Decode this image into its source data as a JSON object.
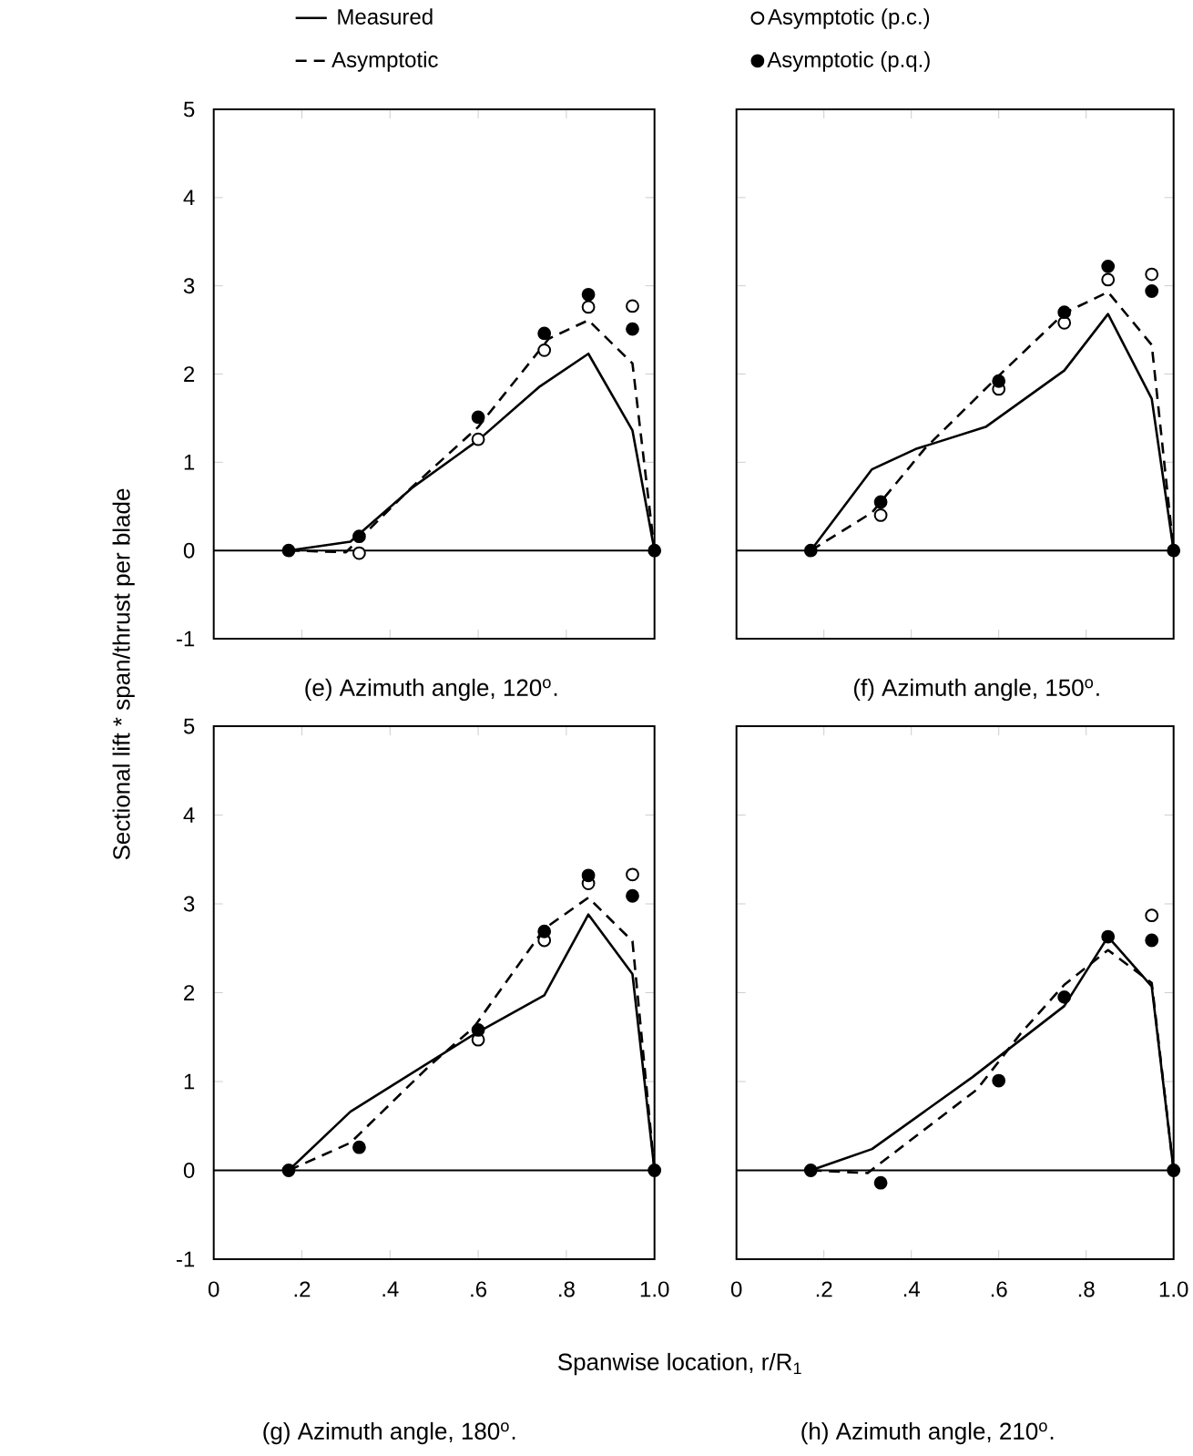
{
  "chart_data": [
    {
      "type": "line",
      "title": "(e) Azimuth angle, 120$^{o}$.",
      "ylabel": "Sectional lift * span/thrust per blade",
      "xlim": [
        0,
        1
      ],
      "ylim": [
        -1,
        5
      ],
      "xticks": [
        0.2,
        0.4,
        0.6,
        0.8
      ],
      "yticks": [
        -1,
        0,
        1,
        2,
        3,
        4,
        5
      ],
      "tick_labels": "y",
      "legend": "top",
      "ref_lines": [
        {
          "axis": "y",
          "value": 0
        }
      ],
      "series": [
        {
          "name": "Measured",
          "line_style": "solid",
          "color": "#000000",
          "x": [
            0.17,
            0.31,
            0.45,
            0.6,
            0.74,
            0.85,
            0.95,
            1.0
          ],
          "values": [
            0,
            0.1,
            0.71,
            1.25,
            1.86,
            2.23,
            1.36,
            0
          ]
        },
        {
          "name": "Asymptotic",
          "line_style": "dashed",
          "color": "#000000",
          "x": [
            0.17,
            0.3,
            0.45,
            0.6,
            0.76,
            0.85,
            0.95,
            1.0
          ],
          "values": [
            0,
            -0.02,
            0.72,
            1.4,
            2.4,
            2.61,
            2.12,
            0
          ]
        },
        {
          "name": "Asymptotic (p.c.)",
          "type": "scatter",
          "marker": "circle",
          "color": "#ffffff",
          "x": [
            0.33,
            0.6,
            0.75,
            0.85,
            0.95
          ],
          "values": [
            -0.03,
            1.26,
            2.27,
            2.76,
            2.77
          ]
        },
        {
          "name": "Asymptotic (p.q.)",
          "type": "scatter",
          "marker": "circle",
          "color": "#000000",
          "x": [
            0.17,
            0.33,
            0.6,
            0.75,
            0.85,
            0.95,
            1.0
          ],
          "values": [
            0,
            0.16,
            1.51,
            2.46,
            2.9,
            2.51,
            0
          ]
        }
      ]
    },
    {
      "type": "line",
      "title": "(f) Azimuth angle, 150$^{o}$.",
      "xlim": [
        0,
        1
      ],
      "ylim": [
        -1,
        5
      ],
      "xticks": [
        0.2,
        0.4,
        0.6,
        0.8
      ],
      "yticks": [
        0,
        1,
        2,
        3,
        4
      ],
      "tick_labels": false,
      "ref_lines": [
        {
          "axis": "y",
          "value": 0
        }
      ],
      "series": [
        {
          "line_style": "solid",
          "color": "#000000",
          "x": [
            0.17,
            0.31,
            0.41,
            0.57,
            0.75,
            0.85,
            0.95,
            1.0
          ],
          "values": [
            0,
            0.92,
            1.15,
            1.4,
            2.04,
            2.68,
            1.72,
            0
          ]
        },
        {
          "line_style": "dashed",
          "color": "#000000",
          "x": [
            0.17,
            0.31,
            0.43,
            0.6,
            0.75,
            0.85,
            0.95,
            1.0
          ],
          "values": [
            0,
            0.43,
            1.15,
            1.98,
            2.69,
            2.93,
            2.33,
            0
          ]
        },
        {
          "type": "scatter",
          "marker": "circle",
          "color": "#ffffff",
          "x": [
            0.33,
            0.6,
            0.75,
            0.85,
            0.95
          ],
          "values": [
            0.4,
            1.83,
            2.58,
            3.07,
            3.13
          ]
        },
        {
          "type": "scatter",
          "marker": "circle",
          "color": "#000000",
          "x": [
            0.17,
            0.33,
            0.6,
            0.75,
            0.85,
            0.95,
            1.0
          ],
          "values": [
            0,
            0.55,
            1.92,
            2.7,
            3.22,
            2.94,
            0
          ]
        }
      ]
    },
    {
      "type": "line",
      "title": "(g) Azimuth angle, 180$^{o}$.",
      "xlabel": "Spanwise location, r/R$_{1}$",
      "xlim": [
        0,
        1
      ],
      "ylim": [
        -1,
        5
      ],
      "xticks": [
        0,
        {
          "value": 0.2,
          "label": ".2"
        },
        {
          "value": 0.4,
          "label": ".4"
        },
        {
          "value": 0.6,
          "label": ".6"
        },
        {
          "value": 0.8,
          "label": ".8"
        },
        {
          "value": 1,
          "label": "1.0"
        }
      ],
      "yticks": [
        -1,
        0,
        1,
        2,
        3,
        4,
        5
      ],
      "ref_lines": [
        {
          "axis": "y",
          "value": 0
        }
      ],
      "series": [
        {
          "line_style": "solid",
          "color": "#000000",
          "x": [
            0.17,
            0.31,
            0.39,
            0.59,
            0.75,
            0.85,
            0.95,
            1.0
          ],
          "values": [
            0,
            0.66,
            0.91,
            1.53,
            1.97,
            2.88,
            2.21,
            0
          ]
        },
        {
          "line_style": "dashed",
          "color": "#000000",
          "x": [
            0.17,
            0.31,
            0.49,
            0.59,
            0.75,
            0.85,
            0.95,
            1.0
          ],
          "values": [
            0,
            0.31,
            1.18,
            1.61,
            2.72,
            3.07,
            2.58,
            0
          ]
        },
        {
          "type": "scatter",
          "marker": "circle",
          "color": "#ffffff",
          "x": [
            0.6,
            0.75,
            0.85,
            0.95
          ],
          "values": [
            1.47,
            2.59,
            3.23,
            3.33
          ]
        },
        {
          "type": "scatter",
          "marker": "circle",
          "color": "#000000",
          "x": [
            0.17,
            0.33,
            0.6,
            0.75,
            0.85,
            0.95,
            1.0
          ],
          "values": [
            0,
            0.26,
            1.58,
            2.69,
            3.32,
            3.09,
            0
          ]
        }
      ]
    },
    {
      "type": "line",
      "title": "(h) Azimuth angle, 210$^{o}$.",
      "xlim": [
        0,
        1
      ],
      "ylim": [
        -1,
        5
      ],
      "xticks": [
        0,
        {
          "value": 0.2,
          "label": ".2"
        },
        {
          "value": 0.4,
          "label": ".4"
        },
        {
          "value": 0.6,
          "label": ".6"
        },
        {
          "value": 0.8,
          "label": ".8"
        },
        {
          "value": 1,
          "label": "1.0"
        }
      ],
      "yticks": [
        0,
        1,
        2,
        3,
        4
      ],
      "tick_labels": "x",
      "ref_lines": [
        {
          "axis": "y",
          "value": 0
        }
      ],
      "series": [
        {
          "line_style": "solid",
          "color": "#000000",
          "x": [
            0.17,
            0.31,
            0.54,
            0.75,
            0.85,
            0.95,
            1.0
          ],
          "values": [
            0,
            0.24,
            1.05,
            1.85,
            2.63,
            2.07,
            0
          ]
        },
        {
          "line_style": "dashed",
          "color": "#000000",
          "x": [
            0.17,
            0.3,
            0.55,
            0.65,
            0.75,
            0.85,
            0.95,
            1.0
          ],
          "values": [
            0,
            -0.03,
            0.91,
            1.54,
            2.09,
            2.48,
            2.11,
            0
          ]
        },
        {
          "type": "scatter",
          "marker": "circle",
          "color": "#ffffff",
          "x": [
            0.95
          ],
          "values": [
            2.87
          ]
        },
        {
          "type": "scatter",
          "marker": "circle",
          "color": "#000000",
          "x": [
            0.17,
            0.33,
            0.6,
            0.75,
            0.85,
            0.95,
            1.0
          ],
          "values": [
            0,
            -0.14,
            1.01,
            1.95,
            2.63,
            2.59,
            0
          ]
        }
      ]
    }
  ]
}
